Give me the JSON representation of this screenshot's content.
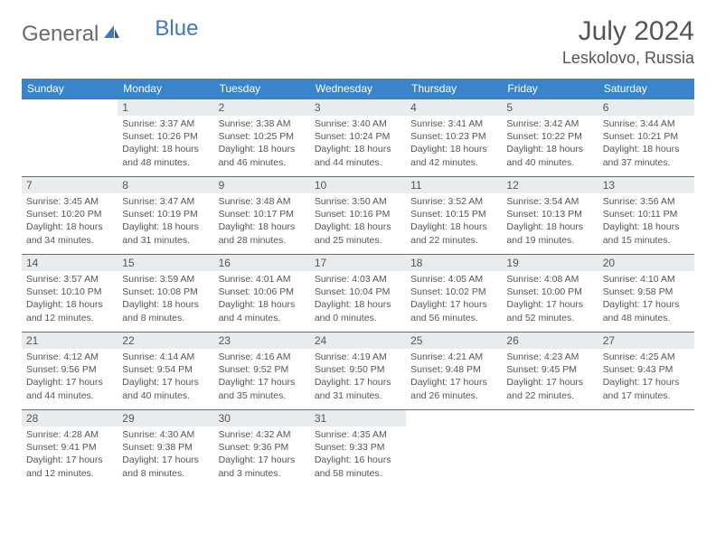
{
  "brand": {
    "part1": "General",
    "part2": "Blue"
  },
  "title": "July 2024",
  "location": "Leskolovo, Russia",
  "colors": {
    "header_bg": "#3a85c9",
    "header_text": "#ffffff",
    "daynum_bg": "#e9ecef",
    "border": "#3a7bb0",
    "text": "#555555",
    "brand_gray": "#6a6a6a",
    "brand_blue": "#3a7bbf",
    "background": "#ffffff"
  },
  "weekdays": [
    "Sunday",
    "Monday",
    "Tuesday",
    "Wednesday",
    "Thursday",
    "Friday",
    "Saturday"
  ],
  "weeks": [
    [
      {
        "n": "",
        "lines": []
      },
      {
        "n": "1",
        "lines": [
          "Sunrise: 3:37 AM",
          "Sunset: 10:26 PM",
          "Daylight: 18 hours",
          "and 48 minutes."
        ]
      },
      {
        "n": "2",
        "lines": [
          "Sunrise: 3:38 AM",
          "Sunset: 10:25 PM",
          "Daylight: 18 hours",
          "and 46 minutes."
        ]
      },
      {
        "n": "3",
        "lines": [
          "Sunrise: 3:40 AM",
          "Sunset: 10:24 PM",
          "Daylight: 18 hours",
          "and 44 minutes."
        ]
      },
      {
        "n": "4",
        "lines": [
          "Sunrise: 3:41 AM",
          "Sunset: 10:23 PM",
          "Daylight: 18 hours",
          "and 42 minutes."
        ]
      },
      {
        "n": "5",
        "lines": [
          "Sunrise: 3:42 AM",
          "Sunset: 10:22 PM",
          "Daylight: 18 hours",
          "and 40 minutes."
        ]
      },
      {
        "n": "6",
        "lines": [
          "Sunrise: 3:44 AM",
          "Sunset: 10:21 PM",
          "Daylight: 18 hours",
          "and 37 minutes."
        ]
      }
    ],
    [
      {
        "n": "7",
        "lines": [
          "Sunrise: 3:45 AM",
          "Sunset: 10:20 PM",
          "Daylight: 18 hours",
          "and 34 minutes."
        ]
      },
      {
        "n": "8",
        "lines": [
          "Sunrise: 3:47 AM",
          "Sunset: 10:19 PM",
          "Daylight: 18 hours",
          "and 31 minutes."
        ]
      },
      {
        "n": "9",
        "lines": [
          "Sunrise: 3:48 AM",
          "Sunset: 10:17 PM",
          "Daylight: 18 hours",
          "and 28 minutes."
        ]
      },
      {
        "n": "10",
        "lines": [
          "Sunrise: 3:50 AM",
          "Sunset: 10:16 PM",
          "Daylight: 18 hours",
          "and 25 minutes."
        ]
      },
      {
        "n": "11",
        "lines": [
          "Sunrise: 3:52 AM",
          "Sunset: 10:15 PM",
          "Daylight: 18 hours",
          "and 22 minutes."
        ]
      },
      {
        "n": "12",
        "lines": [
          "Sunrise: 3:54 AM",
          "Sunset: 10:13 PM",
          "Daylight: 18 hours",
          "and 19 minutes."
        ]
      },
      {
        "n": "13",
        "lines": [
          "Sunrise: 3:56 AM",
          "Sunset: 10:11 PM",
          "Daylight: 18 hours",
          "and 15 minutes."
        ]
      }
    ],
    [
      {
        "n": "14",
        "lines": [
          "Sunrise: 3:57 AM",
          "Sunset: 10:10 PM",
          "Daylight: 18 hours",
          "and 12 minutes."
        ]
      },
      {
        "n": "15",
        "lines": [
          "Sunrise: 3:59 AM",
          "Sunset: 10:08 PM",
          "Daylight: 18 hours",
          "and 8 minutes."
        ]
      },
      {
        "n": "16",
        "lines": [
          "Sunrise: 4:01 AM",
          "Sunset: 10:06 PM",
          "Daylight: 18 hours",
          "and 4 minutes."
        ]
      },
      {
        "n": "17",
        "lines": [
          "Sunrise: 4:03 AM",
          "Sunset: 10:04 PM",
          "Daylight: 18 hours",
          "and 0 minutes."
        ]
      },
      {
        "n": "18",
        "lines": [
          "Sunrise: 4:05 AM",
          "Sunset: 10:02 PM",
          "Daylight: 17 hours",
          "and 56 minutes."
        ]
      },
      {
        "n": "19",
        "lines": [
          "Sunrise: 4:08 AM",
          "Sunset: 10:00 PM",
          "Daylight: 17 hours",
          "and 52 minutes."
        ]
      },
      {
        "n": "20",
        "lines": [
          "Sunrise: 4:10 AM",
          "Sunset: 9:58 PM",
          "Daylight: 17 hours",
          "and 48 minutes."
        ]
      }
    ],
    [
      {
        "n": "21",
        "lines": [
          "Sunrise: 4:12 AM",
          "Sunset: 9:56 PM",
          "Daylight: 17 hours",
          "and 44 minutes."
        ]
      },
      {
        "n": "22",
        "lines": [
          "Sunrise: 4:14 AM",
          "Sunset: 9:54 PM",
          "Daylight: 17 hours",
          "and 40 minutes."
        ]
      },
      {
        "n": "23",
        "lines": [
          "Sunrise: 4:16 AM",
          "Sunset: 9:52 PM",
          "Daylight: 17 hours",
          "and 35 minutes."
        ]
      },
      {
        "n": "24",
        "lines": [
          "Sunrise: 4:19 AM",
          "Sunset: 9:50 PM",
          "Daylight: 17 hours",
          "and 31 minutes."
        ]
      },
      {
        "n": "25",
        "lines": [
          "Sunrise: 4:21 AM",
          "Sunset: 9:48 PM",
          "Daylight: 17 hours",
          "and 26 minutes."
        ]
      },
      {
        "n": "26",
        "lines": [
          "Sunrise: 4:23 AM",
          "Sunset: 9:45 PM",
          "Daylight: 17 hours",
          "and 22 minutes."
        ]
      },
      {
        "n": "27",
        "lines": [
          "Sunrise: 4:25 AM",
          "Sunset: 9:43 PM",
          "Daylight: 17 hours",
          "and 17 minutes."
        ]
      }
    ],
    [
      {
        "n": "28",
        "lines": [
          "Sunrise: 4:28 AM",
          "Sunset: 9:41 PM",
          "Daylight: 17 hours",
          "and 12 minutes."
        ]
      },
      {
        "n": "29",
        "lines": [
          "Sunrise: 4:30 AM",
          "Sunset: 9:38 PM",
          "Daylight: 17 hours",
          "and 8 minutes."
        ]
      },
      {
        "n": "30",
        "lines": [
          "Sunrise: 4:32 AM",
          "Sunset: 9:36 PM",
          "Daylight: 17 hours",
          "and 3 minutes."
        ]
      },
      {
        "n": "31",
        "lines": [
          "Sunrise: 4:35 AM",
          "Sunset: 9:33 PM",
          "Daylight: 16 hours",
          "and 58 minutes."
        ]
      },
      {
        "n": "",
        "lines": []
      },
      {
        "n": "",
        "lines": []
      },
      {
        "n": "",
        "lines": []
      }
    ]
  ]
}
